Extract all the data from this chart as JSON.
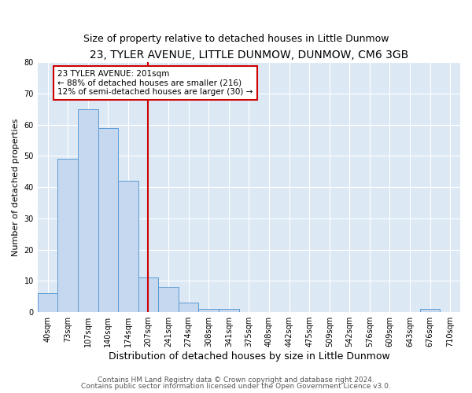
{
  "title": "23, TYLER AVENUE, LITTLE DUNMOW, DUNMOW, CM6 3GB",
  "subtitle": "Size of property relative to detached houses in Little Dunmow",
  "xlabel": "Distribution of detached houses by size in Little Dunmow",
  "ylabel": "Number of detached properties",
  "bin_labels": [
    "40sqm",
    "73sqm",
    "107sqm",
    "140sqm",
    "174sqm",
    "207sqm",
    "241sqm",
    "274sqm",
    "308sqm",
    "341sqm",
    "375sqm",
    "408sqm",
    "442sqm",
    "475sqm",
    "509sqm",
    "542sqm",
    "576sqm",
    "609sqm",
    "643sqm",
    "676sqm",
    "710sqm"
  ],
  "bar_heights": [
    6,
    49,
    65,
    59,
    42,
    11,
    8,
    3,
    1,
    1,
    0,
    0,
    0,
    0,
    0,
    0,
    0,
    0,
    0,
    1,
    0
  ],
  "bar_color": "#c5d8f0",
  "bar_edgecolor": "#5b9bd5",
  "vline_x_index": 5,
  "vline_color": "#cc0000",
  "ylim": [
    0,
    80
  ],
  "annotation_line1": "23 TYLER AVENUE: 201sqm",
  "annotation_line2": "← 88% of detached houses are smaller (216)",
  "annotation_line3": "12% of semi-detached houses are larger (30) →",
  "annotation_box_edgecolor": "#cc0000",
  "footer_line1": "Contains HM Land Registry data © Crown copyright and database right 2024.",
  "footer_line2": "Contains public sector information licensed under the Open Government Licence v3.0.",
  "bg_color": "#dde8f5",
  "title_fontsize": 10,
  "subtitle_fontsize": 9,
  "xlabel_fontsize": 9,
  "ylabel_fontsize": 8,
  "tick_fontsize": 7,
  "annotation_fontsize": 7.5,
  "footer_fontsize": 6.5
}
